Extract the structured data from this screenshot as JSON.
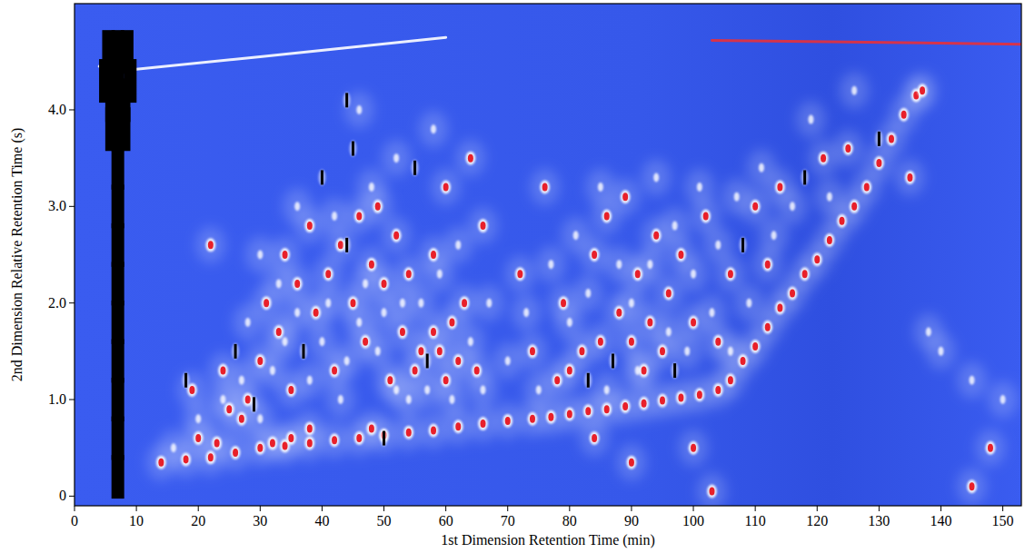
{
  "chart_data": {
    "type": "scatter",
    "x_label": "1st Dimension Retention Time (min)",
    "y_label": "2nd Dimension Relative Retention Time (s)",
    "xlim": [
      0,
      153
    ],
    "ylim": [
      -0.1,
      5.1
    ],
    "xticks": [
      0,
      10,
      20,
      30,
      40,
      50,
      60,
      70,
      80,
      90,
      100,
      110,
      120,
      130,
      140,
      150
    ],
    "yticks": [
      0,
      {
        "value": 1,
        "label": "1.0"
      },
      {
        "value": 2,
        "label": "2.0"
      },
      {
        "value": 3,
        "label": "3.0"
      },
      {
        "value": 4,
        "label": "4.0"
      }
    ],
    "grid": false,
    "series": [
      {
        "type": "scatter",
        "marker": "ellipse",
        "color": "#e8202a",
        "x": [
          14,
          18,
          22,
          26,
          30,
          34,
          38,
          42,
          46,
          50,
          54,
          58,
          62,
          66,
          70,
          74,
          77,
          80,
          83,
          86,
          89,
          92,
          95,
          98,
          101,
          104,
          106,
          108,
          110,
          112,
          114,
          116,
          118,
          120,
          122,
          124,
          126,
          128,
          130,
          132,
          134,
          136,
          19,
          22,
          24,
          25,
          27,
          28,
          30,
          31,
          33,
          34,
          35,
          36,
          38,
          39,
          41,
          42,
          43,
          45,
          46,
          47,
          48,
          48,
          49,
          50,
          51,
          52,
          53,
          54,
          55,
          56,
          58,
          58,
          59,
          60,
          60,
          61,
          62,
          63,
          64,
          65,
          66,
          35,
          38,
          32,
          20,
          23,
          72,
          74,
          76,
          78,
          79,
          80,
          82,
          84,
          85,
          86,
          88,
          89,
          90,
          91,
          92,
          93,
          94,
          95,
          96,
          98,
          100,
          102,
          104,
          106,
          110,
          112,
          114,
          121,
          125,
          135,
          137,
          84,
          90,
          100,
          145,
          148,
          103
        ],
        "values": [
          0.35,
          0.38,
          0.4,
          0.45,
          0.5,
          0.52,
          0.55,
          0.58,
          0.6,
          0.63,
          0.66,
          0.68,
          0.72,
          0.75,
          0.78,
          0.8,
          0.82,
          0.85,
          0.88,
          0.9,
          0.93,
          0.96,
          0.99,
          1.02,
          1.05,
          1.1,
          1.2,
          1.4,
          1.55,
          1.75,
          1.95,
          2.1,
          2.3,
          2.45,
          2.65,
          2.85,
          3.0,
          3.2,
          3.45,
          3.7,
          3.95,
          4.15,
          1.1,
          2.6,
          1.3,
          0.9,
          0.8,
          1.0,
          1.4,
          2.0,
          1.7,
          2.5,
          1.1,
          2.2,
          2.8,
          1.9,
          2.3,
          1.3,
          2.6,
          2.0,
          2.9,
          1.6,
          0.7,
          2.4,
          3.0,
          2.2,
          1.2,
          2.7,
          1.7,
          2.3,
          1.3,
          1.5,
          1.7,
          2.5,
          1.5,
          1.2,
          3.2,
          1.8,
          1.4,
          2.0,
          3.5,
          1.3,
          2.8,
          0.6,
          0.7,
          0.55,
          0.6,
          0.55,
          2.3,
          1.5,
          3.2,
          1.2,
          2.0,
          1.3,
          1.5,
          2.5,
          1.6,
          2.9,
          1.9,
          3.1,
          1.6,
          2.3,
          1.3,
          1.8,
          2.7,
          1.5,
          2.1,
          2.5,
          1.8,
          2.9,
          1.6,
          2.3,
          3.0,
          2.4,
          3.2,
          3.5,
          3.6,
          3.3,
          4.2,
          0.6,
          0.35,
          0.5,
          0.1,
          0.5,
          0.05
        ]
      },
      {
        "type": "scatter",
        "marker": "streak",
        "color": "#000000",
        "x": [
          18,
          26,
          29,
          37,
          40,
          44,
          45,
          50,
          55,
          57,
          44,
          83,
          87,
          97,
          108,
          118,
          130
        ],
        "values": [
          1.2,
          1.5,
          0.95,
          1.5,
          3.3,
          2.6,
          3.6,
          0.6,
          3.4,
          1.4,
          4.1,
          1.2,
          1.4,
          1.3,
          2.6,
          3.3,
          3.7
        ]
      },
      {
        "type": "scatter",
        "marker": "ellipse",
        "color": "#ffffff",
        "x": [
          16,
          20,
          24,
          27,
          30,
          32,
          34,
          36,
          38,
          40,
          41,
          43,
          44,
          46,
          47,
          49,
          50,
          52,
          53,
          54,
          56,
          57,
          59,
          61,
          62,
          64,
          66,
          67,
          42,
          48,
          52,
          58,
          46,
          36,
          30,
          28,
          33,
          70,
          73,
          75,
          77,
          80,
          81,
          83,
          85,
          86,
          88,
          90,
          91,
          93,
          94,
          96,
          97,
          99,
          100,
          101,
          103,
          104,
          106,
          107,
          109,
          111,
          113,
          116,
          119,
          122,
          126,
          138,
          140,
          145,
          150
        ],
        "values": [
          0.5,
          0.8,
          1.0,
          1.2,
          0.8,
          1.3,
          1.6,
          1.9,
          1.2,
          1.6,
          2.0,
          1.0,
          1.4,
          1.8,
          2.2,
          1.5,
          1.9,
          1.1,
          2.0,
          1.0,
          2.0,
          1.1,
          2.3,
          1.0,
          2.6,
          1.6,
          1.1,
          2.0,
          2.9,
          3.2,
          3.5,
          3.8,
          4.0,
          3.0,
          2.5,
          1.8,
          2.2,
          1.4,
          1.9,
          1.1,
          2.4,
          1.8,
          2.7,
          2.1,
          3.2,
          1.1,
          2.4,
          2.0,
          1.3,
          2.4,
          3.3,
          1.7,
          2.8,
          1.5,
          2.3,
          3.2,
          1.9,
          2.6,
          1.5,
          3.1,
          2.0,
          3.4,
          2.7,
          3.0,
          3.9,
          3.1,
          4.2,
          1.7,
          1.5,
          1.2,
          1.0
        ]
      },
      {
        "type": "scatter",
        "marker": "band",
        "color": "#000000",
        "x": [
          7,
          7,
          7,
          7,
          7,
          7,
          7,
          7,
          7,
          7,
          7,
          7,
          5,
          9,
          6,
          8,
          5.5,
          8.5,
          6,
          8
        ],
        "values": [
          0.2,
          0.6,
          1.0,
          1.4,
          1.8,
          2.2,
          2.6,
          3.0,
          3.4,
          3.8,
          4.2,
          4.6,
          4.3,
          4.3,
          3.8,
          3.8,
          4.6,
          4.6,
          4.1,
          4.1
        ]
      },
      {
        "type": "line",
        "line_style": "solid",
        "color": "#e8303a",
        "x": [
          103,
          153
        ],
        "values": [
          4.72,
          4.68
        ]
      },
      {
        "type": "line",
        "line_style": "solid",
        "color": "#ffffff",
        "x": [
          4,
          10,
          30,
          60
        ],
        "values": [
          4.45,
          4.42,
          4.55,
          4.75
        ]
      }
    ]
  }
}
